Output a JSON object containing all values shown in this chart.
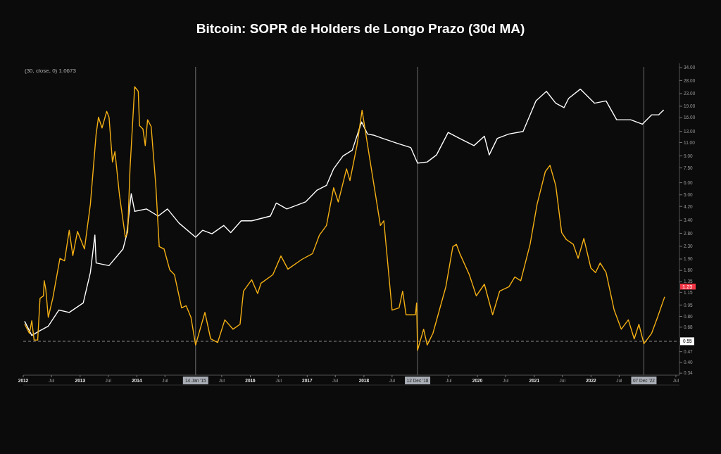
{
  "chart_data": {
    "type": "line",
    "title": "Bitcoin: SOPR de Holders de Longo Prazo (30d MA)",
    "log": true,
    "grid": false,
    "line_style": "solid",
    "marker": "none",
    "xlim": [
      "2012-01-01",
      "2023-07-24"
    ],
    "xticks": [
      {
        "value": "2012-01-01",
        "label": "2012"
      },
      {
        "value": "2012-07-01",
        "label": "Jul"
      },
      {
        "value": "2013-01-01",
        "label": "2013"
      },
      {
        "value": "2013-07-01",
        "label": "Jul"
      },
      {
        "value": "2014-01-01",
        "label": "2014"
      },
      {
        "value": "2014-07-01",
        "label": "Jul"
      },
      {
        "value": "2015-07-01",
        "label": "Jul"
      },
      {
        "value": "2016-01-01",
        "label": "2016"
      },
      {
        "value": "2016-07-01",
        "label": "Jul"
      },
      {
        "value": "2017-01-01",
        "label": "2017"
      },
      {
        "value": "2017-07-01",
        "label": "Jul"
      },
      {
        "value": "2018-01-01",
        "label": "2018"
      },
      {
        "value": "2018-07-01",
        "label": "Jul"
      },
      {
        "value": "2019-07-01",
        "label": "Jul"
      },
      {
        "value": "2020-01-01",
        "label": "2020"
      },
      {
        "value": "2020-07-01",
        "label": "Jul"
      },
      {
        "value": "2021-01-01",
        "label": "2021"
      },
      {
        "value": "2021-07-01",
        "label": "Jul"
      },
      {
        "value": "2022-01-01",
        "label": "2022"
      },
      {
        "value": "2022-07-01",
        "label": "Jul"
      },
      {
        "value": "2023-07-01",
        "label": "Jul"
      }
    ],
    "ylim": [
      0.33,
      34.4
    ],
    "yticks": [
      {
        "value": 0.34,
        "label": "0.34"
      },
      {
        "value": 0.4,
        "label": "0.40"
      },
      {
        "value": 0.47,
        "label": "0.47"
      },
      {
        "value": 0.68,
        "label": "0.68"
      },
      {
        "value": 0.8,
        "label": "0.80"
      },
      {
        "value": 0.95,
        "label": "0.95"
      },
      {
        "value": 1.15,
        "label": "1.15"
      },
      {
        "value": 1.35,
        "label": "1.35"
      },
      {
        "value": 1.6,
        "label": "1.60"
      },
      {
        "value": 1.9,
        "label": "1.90"
      },
      {
        "value": 2.3,
        "label": "2.30"
      },
      {
        "value": 2.8,
        "label": "2.80"
      },
      {
        "value": 3.4,
        "label": "3.40"
      },
      {
        "value": 4.2,
        "label": "4.20"
      },
      {
        "value": 5,
        "label": "5.00"
      },
      {
        "value": 6,
        "label": "6.00"
      },
      {
        "value": 7.5,
        "label": "7.50"
      },
      {
        "value": 9,
        "label": "9.00"
      },
      {
        "value": 11,
        "label": "11.00"
      },
      {
        "value": 13,
        "label": "13.00"
      },
      {
        "value": 16,
        "label": "16.00"
      },
      {
        "value": 19,
        "label": "19.00"
      },
      {
        "value": 23,
        "label": "23.00"
      },
      {
        "value": 28,
        "label": "28.00"
      },
      {
        "value": 34,
        "label": "34.00"
      }
    ],
    "series": [
      {
        "color": "#ffffff",
        "x": [
          "2012-01-11",
          "2012-02-25",
          "2012-04-11",
          "2012-06-10",
          "2012-08-17",
          "2012-10-23",
          "2013-01-21",
          "2013-03-08",
          "2013-04-06",
          "2013-04-14",
          "2013-07-06",
          "2013-10-04",
          "2013-10-27",
          "2013-11-26",
          "2013-12-18",
          "2014-03-04",
          "2014-05-18",
          "2014-07-17",
          "2014-09-30",
          "2015-01-14",
          "2015-02-28",
          "2015-04-29",
          "2015-07-14",
          "2015-08-28",
          "2015-11-03",
          "2016-01-10",
          "2016-05-09",
          "2016-06-16",
          "2016-08-23",
          "2016-12-21",
          "2017-03-06",
          "2017-05-05",
          "2017-06-20",
          "2017-08-19",
          "2017-10-18",
          "2017-12-17",
          "2018-01-24",
          "2018-03-03",
          "2018-05-02",
          "2018-07-31",
          "2018-10-29",
          "2018-12-12",
          "2019-02-12",
          "2019-04-13",
          "2019-06-27",
          "2019-08-26",
          "2019-12-10",
          "2020-02-15",
          "2020-03-17",
          "2020-05-08",
          "2020-07-22",
          "2020-10-21",
          "2021-01-12",
          "2021-03-20",
          "2021-05-19",
          "2021-07-11",
          "2021-08-10",
          "2021-10-24",
          "2022-01-23",
          "2022-04-08",
          "2022-06-15",
          "2022-09-13",
          "2022-11-27",
          "2023-01-27",
          "2023-03-13",
          "2023-04-12"
        ],
        "values": [
          0.74,
          0.6,
          0.64,
          0.69,
          0.88,
          0.85,
          0.98,
          1.55,
          2.73,
          1.79,
          1.72,
          2.21,
          2.73,
          5.09,
          3.9,
          4.04,
          3.63,
          4.04,
          3.26,
          2.64,
          2.93,
          2.78,
          3.15,
          2.83,
          3.38,
          3.38,
          3.63,
          4.42,
          4.04,
          4.49,
          5.37,
          5.76,
          7.4,
          8.97,
          9.8,
          15,
          12.5,
          12.3,
          11.7,
          10.9,
          10.2,
          8.06,
          8.2,
          9.12,
          12.8,
          11.9,
          10.5,
          12.1,
          9.12,
          11.7,
          12.5,
          13,
          20.6,
          23.8,
          19.9,
          18.6,
          21.4,
          24.6,
          19.9,
          20.6,
          15.5,
          15.5,
          14.5,
          16.7,
          16.7,
          17.9
        ]
      },
      {
        "color": "#f5b014",
        "x": [
          "2012-01-11",
          "2012-02-10",
          "2012-02-25",
          "2012-03-11",
          "2012-04-03",
          "2012-04-18",
          "2012-05-10",
          "2012-05-15",
          "2012-05-25",
          "2012-06-10",
          "2012-07-09",
          "2012-08-24",
          "2012-09-23",
          "2012-10-23",
          "2012-11-15",
          "2012-12-15",
          "2013-01-29",
          "2013-03-08",
          "2013-04-14",
          "2013-04-29",
          "2013-05-22",
          "2013-06-21",
          "2013-07-06",
          "2013-07-28",
          "2013-08-13",
          "2013-09-11",
          "2013-10-19",
          "2013-11-03",
          "2013-11-18",
          "2013-12-18",
          "2014-01-10",
          "2014-01-18",
          "2014-02-09",
          "2014-02-24",
          "2014-03-11",
          "2014-04-03",
          "2014-05-03",
          "2014-05-25",
          "2014-06-25",
          "2014-08-01",
          "2014-08-31",
          "2014-10-16",
          "2014-11-14",
          "2014-12-15",
          "2015-01-14",
          "2015-03-15",
          "2015-04-21",
          "2015-06-05",
          "2015-07-21",
          "2015-09-12",
          "2015-10-27",
          "2015-11-18",
          "2016-01-10",
          "2016-02-17",
          "2016-03-10",
          "2016-05-25",
          "2016-07-16",
          "2016-08-30",
          "2016-11-28",
          "2017-02-04",
          "2017-03-21",
          "2017-05-05",
          "2017-06-20",
          "2017-07-20",
          "2017-09-11",
          "2017-10-03",
          "2017-11-17",
          "2017-12-20",
          "2018-02-16",
          "2018-04-17",
          "2018-05-09",
          "2018-07-01",
          "2018-08-15",
          "2018-09-07",
          "2018-09-29",
          "2018-11-28",
          "2018-12-06",
          "2018-12-12",
          "2019-01-20",
          "2019-02-12",
          "2019-03-21",
          "2019-06-12",
          "2019-07-27",
          "2019-08-19",
          "2019-09-10",
          "2019-11-10",
          "2019-12-25",
          "2020-02-15",
          "2020-04-08",
          "2020-05-23",
          "2020-07-22",
          "2020-08-29",
          "2020-10-06",
          "2020-12-05",
          "2021-01-19",
          "2021-03-13",
          "2021-04-12",
          "2021-05-19",
          "2021-06-26",
          "2021-07-26",
          "2021-09-09",
          "2021-10-10",
          "2021-11-16",
          "2021-12-31",
          "2022-01-30",
          "2022-03-01",
          "2022-04-08",
          "2022-05-30",
          "2022-07-15",
          "2022-08-29",
          "2022-10-06",
          "2022-11-05",
          "2022-12-07",
          "2023-01-26",
          "2023-03-05",
          "2023-04-19"
        ],
        "values": [
          0.71,
          0.62,
          0.75,
          0.56,
          0.56,
          1.05,
          1.09,
          1.37,
          1.21,
          0.79,
          1.05,
          1.92,
          1.85,
          2.93,
          2,
          2.88,
          2.21,
          4.34,
          12.5,
          16.1,
          13.7,
          17.6,
          16.1,
          8.2,
          9.6,
          5,
          2.64,
          2.83,
          7.4,
          25.5,
          23.8,
          14.2,
          13.5,
          10.5,
          15.5,
          14,
          5.76,
          2.29,
          2.21,
          1.61,
          1.5,
          0.91,
          0.94,
          0.79,
          0.52,
          0.85,
          0.57,
          0.54,
          0.76,
          0.66,
          0.71,
          1.17,
          1.39,
          1.13,
          1.32,
          1.5,
          1.99,
          1.63,
          1.89,
          2.06,
          2.73,
          3.15,
          5.56,
          4.49,
          7.4,
          6.2,
          10.5,
          17.9,
          7.6,
          3.15,
          3.38,
          0.88,
          0.91,
          1.17,
          0.82,
          0.82,
          0.98,
          0.48,
          0.66,
          0.52,
          0.62,
          1.25,
          2.29,
          2.37,
          2.06,
          1.5,
          1.09,
          1.3,
          0.82,
          1.17,
          1.25,
          1.45,
          1.37,
          2.37,
          4.34,
          7.1,
          7.8,
          5.76,
          2.83,
          2.55,
          2.37,
          1.92,
          2.59,
          1.66,
          1.55,
          1.79,
          1.55,
          0.88,
          0.66,
          0.76,
          0.57,
          0.71,
          0.53,
          0.62,
          0.79,
          1.07
        ]
      }
    ],
    "ref_lines": [
      {
        "axis": "y",
        "value": 0.55,
        "label": "0.55",
        "color": "#9e9e9e",
        "line_style": "dashed"
      },
      {
        "axis": "x",
        "value": "2015-01-14",
        "label": "14 Jan '15",
        "color": "#6e6e6e"
      },
      {
        "axis": "x",
        "value": "2018-12-12",
        "label": "12 Dec '18",
        "color": "#6e6e6e"
      },
      {
        "axis": "x",
        "value": "2022-12-07",
        "label": "07 Dec '22",
        "color": "#6e6e6e"
      }
    ],
    "annotations": [
      "(30, close, 0) 1.0673",
      {
        "text": "1.23",
        "y": 1.23
      }
    ]
  }
}
